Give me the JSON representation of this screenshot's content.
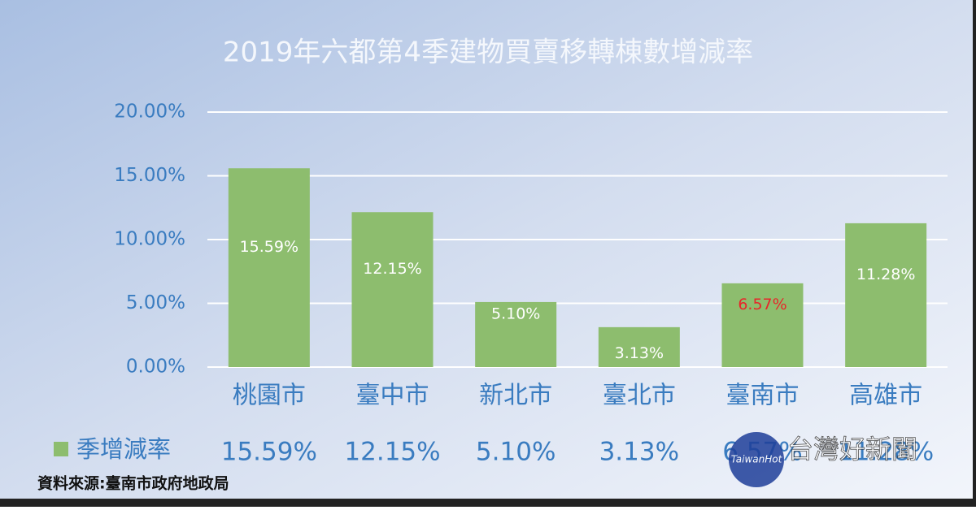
{
  "chart_data": {
    "type": "bar",
    "title": "2019年六都第4季建物買賣移轉棟數增減率",
    "categories": [
      "桃園市",
      "臺中市",
      "新北市",
      "臺北市",
      "臺南市",
      "高雄市"
    ],
    "series": [
      {
        "name": "季增減率",
        "color": "#8dbd6e",
        "values": [
          15.59,
          12.15,
          5.1,
          3.13,
          6.57,
          11.28
        ],
        "value_labels": [
          "15.59%",
          "12.15%",
          "5.10%",
          "3.13%",
          "6.57%",
          "11.28%"
        ],
        "value_label_colors": [
          "#ffffff",
          "#ffffff",
          "#ffffff",
          "#ffffff",
          "#e8262a",
          "#ffffff"
        ]
      }
    ],
    "ylim": [
      0,
      20
    ],
    "yticks": [
      {
        "value": 0,
        "label": "0.00%"
      },
      {
        "value": 5,
        "label": "5.00%"
      },
      {
        "value": 10,
        "label": "10.00%"
      },
      {
        "value": 15,
        "label": "15.00%"
      },
      {
        "value": 20,
        "label": "20.00%"
      }
    ],
    "grid": true,
    "data_table": true,
    "source": "資料來源:臺南市政府地政局",
    "watermark": {
      "logo": "TaiwanHot",
      "name": "台灣好新聞"
    }
  }
}
